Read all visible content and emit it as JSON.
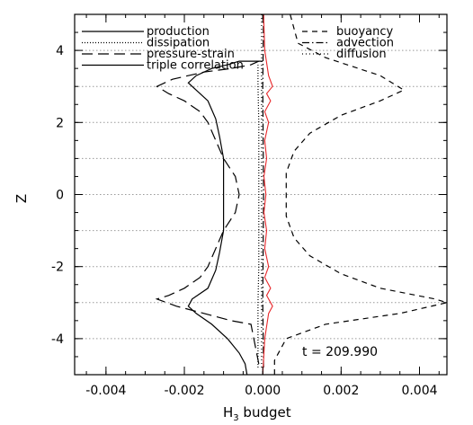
{
  "chart_data": {
    "type": "line",
    "xlabel_main": "H",
    "xlabel_sub": "3",
    "xlabel_rest": " budget",
    "ylabel": "Z",
    "annotation": "t = 209.990",
    "xlim": [
      -0.0048,
      0.0047
    ],
    "ylim": [
      -5,
      5
    ],
    "xticks": [
      -0.004,
      -0.002,
      0.0,
      0.002,
      0.004
    ],
    "xtick_labels": [
      "-0.004",
      "-0.002",
      "0.000",
      "0.002",
      "0.004"
    ],
    "yticks": [
      -4,
      -2,
      0,
      2,
      4
    ],
    "ytick_labels": [
      "-4",
      "-2",
      "0",
      "2",
      "4"
    ],
    "hlines": [
      -4,
      -3,
      -2,
      -1,
      0,
      1,
      2,
      3,
      4
    ],
    "legend_left": [
      "production",
      "dissipation",
      "pressure-strain",
      "triple correlation"
    ],
    "legend_right": [
      "buoyancy",
      "advection",
      "diffusion"
    ],
    "series": [
      {
        "name": "production",
        "style": "solid",
        "color": "#000000",
        "points": [
          [
            -0.0004,
            -5
          ],
          [
            -0.00045,
            -4.7
          ],
          [
            -0.0006,
            -4.4
          ],
          [
            -0.0009,
            -4.0
          ],
          [
            -0.0013,
            -3.6
          ],
          [
            -0.0017,
            -3.3
          ],
          [
            -0.0019,
            -3.1
          ],
          [
            -0.0018,
            -2.9
          ],
          [
            -0.0014,
            -2.6
          ],
          [
            -0.0012,
            -2.1
          ],
          [
            -0.0011,
            -1.6
          ],
          [
            -0.001,
            -1.0
          ],
          [
            -0.001,
            0
          ],
          [
            -0.001,
            1.0
          ],
          [
            -0.0011,
            1.6
          ],
          [
            -0.0012,
            2.1
          ],
          [
            -0.0014,
            2.6
          ],
          [
            -0.0017,
            2.9
          ],
          [
            -0.0019,
            3.1
          ],
          [
            -0.0017,
            3.3
          ],
          [
            -0.0013,
            3.5
          ],
          [
            -0.0009,
            3.6
          ],
          [
            -0.0006,
            3.7
          ],
          [
            -0.0002,
            3.7
          ],
          [
            0,
            3.7
          ]
        ]
      },
      {
        "name": "dissipation",
        "style": "dotted",
        "color": "#000000",
        "points": [
          [
            -0.00012,
            -4.8
          ],
          [
            -0.00012,
            -3.0
          ],
          [
            -0.0001,
            -2.0
          ],
          [
            -0.0001,
            0
          ],
          [
            -0.0001,
            2.0
          ],
          [
            -0.00012,
            3.0
          ],
          [
            -0.00012,
            3.6
          ]
        ]
      },
      {
        "name": "pressure-strain",
        "style": "longdash",
        "color": "#000000",
        "points": [
          [
            -0.0001,
            -4.7
          ],
          [
            -0.0003,
            -3.6
          ],
          [
            -0.0008,
            -3.5
          ],
          [
            -0.0015,
            -3.3
          ],
          [
            -0.0022,
            -3.1
          ],
          [
            -0.0027,
            -2.9
          ],
          [
            -0.0024,
            -2.8
          ],
          [
            -0.002,
            -2.6
          ],
          [
            -0.0016,
            -2.3
          ],
          [
            -0.0014,
            -2.0
          ],
          [
            -0.0012,
            -1.5
          ],
          [
            -0.001,
            -1.0
          ],
          [
            -0.0007,
            -0.5
          ],
          [
            -0.0006,
            0
          ],
          [
            -0.0007,
            0.5
          ],
          [
            -0.001,
            1.0
          ],
          [
            -0.0012,
            1.5
          ],
          [
            -0.0014,
            2.0
          ],
          [
            -0.0016,
            2.3
          ],
          [
            -0.002,
            2.6
          ],
          [
            -0.0024,
            2.8
          ],
          [
            -0.0027,
            3.0
          ],
          [
            -0.0023,
            3.2
          ],
          [
            -0.0015,
            3.4
          ],
          [
            -0.0008,
            3.5
          ],
          [
            -0.0003,
            3.6
          ],
          [
            -0.0001,
            3.7
          ]
        ]
      },
      {
        "name": "buoyancy",
        "style": "dashed",
        "color": "#000000",
        "points": [
          [
            0.0003,
            -5
          ],
          [
            0.0003,
            -4.6
          ],
          [
            0.0006,
            -4.0
          ],
          [
            0.0016,
            -3.6
          ],
          [
            0.0035,
            -3.3
          ],
          [
            0.0047,
            -3.0
          ],
          [
            0.0044,
            -2.9
          ],
          [
            0.003,
            -2.6
          ],
          [
            0.002,
            -2.2
          ],
          [
            0.0012,
            -1.7
          ],
          [
            0.0008,
            -1.2
          ],
          [
            0.0006,
            -0.6
          ],
          [
            0.0006,
            0
          ],
          [
            0.0006,
            0.6
          ],
          [
            0.0008,
            1.2
          ],
          [
            0.0012,
            1.7
          ],
          [
            0.002,
            2.2
          ],
          [
            0.003,
            2.6
          ],
          [
            0.0036,
            2.9
          ],
          [
            0.003,
            3.3
          ],
          [
            0.0016,
            3.8
          ],
          [
            0.0009,
            4.2
          ],
          [
            0.0007,
            5
          ]
        ]
      },
      {
        "name": "advection",
        "style": "dashdot",
        "color": "#000000",
        "points": [
          [
            2e-05,
            -4.8
          ],
          [
            0,
            -3.0
          ],
          [
            2e-05,
            0
          ],
          [
            0,
            3.0
          ],
          [
            2e-05,
            5
          ]
        ]
      },
      {
        "name": "diffusion",
        "style": "finedot",
        "color": "#000000",
        "points": [
          [
            -3e-05,
            -4.8
          ],
          [
            -3e-05,
            0
          ],
          [
            -3e-05,
            5
          ]
        ]
      },
      {
        "name": "",
        "style": "solid",
        "color": "#e8282b",
        "points": [
          [
            0,
            -5
          ],
          [
            5e-05,
            -4.0
          ],
          [
            0.00015,
            -3.3
          ],
          [
            0.00025,
            -3.1
          ],
          [
            0.0001,
            -2.8
          ],
          [
            0.0002,
            -2.6
          ],
          [
            5e-05,
            -2.3
          ],
          [
            0.00015,
            -2.0
          ],
          [
            5e-05,
            -1.5
          ],
          [
            0.0001,
            -1.0
          ],
          [
            3e-05,
            -0.5
          ],
          [
            8e-05,
            0
          ],
          [
            3e-05,
            0.5
          ],
          [
            0.0001,
            1.0
          ],
          [
            5e-05,
            1.5
          ],
          [
            0.00015,
            2.0
          ],
          [
            5e-05,
            2.3
          ],
          [
            0.0002,
            2.6
          ],
          [
            0.0001,
            2.8
          ],
          [
            0.00025,
            3.0
          ],
          [
            0.00015,
            3.3
          ],
          [
            5e-05,
            4.0
          ],
          [
            2e-05,
            5
          ]
        ]
      }
    ]
  }
}
